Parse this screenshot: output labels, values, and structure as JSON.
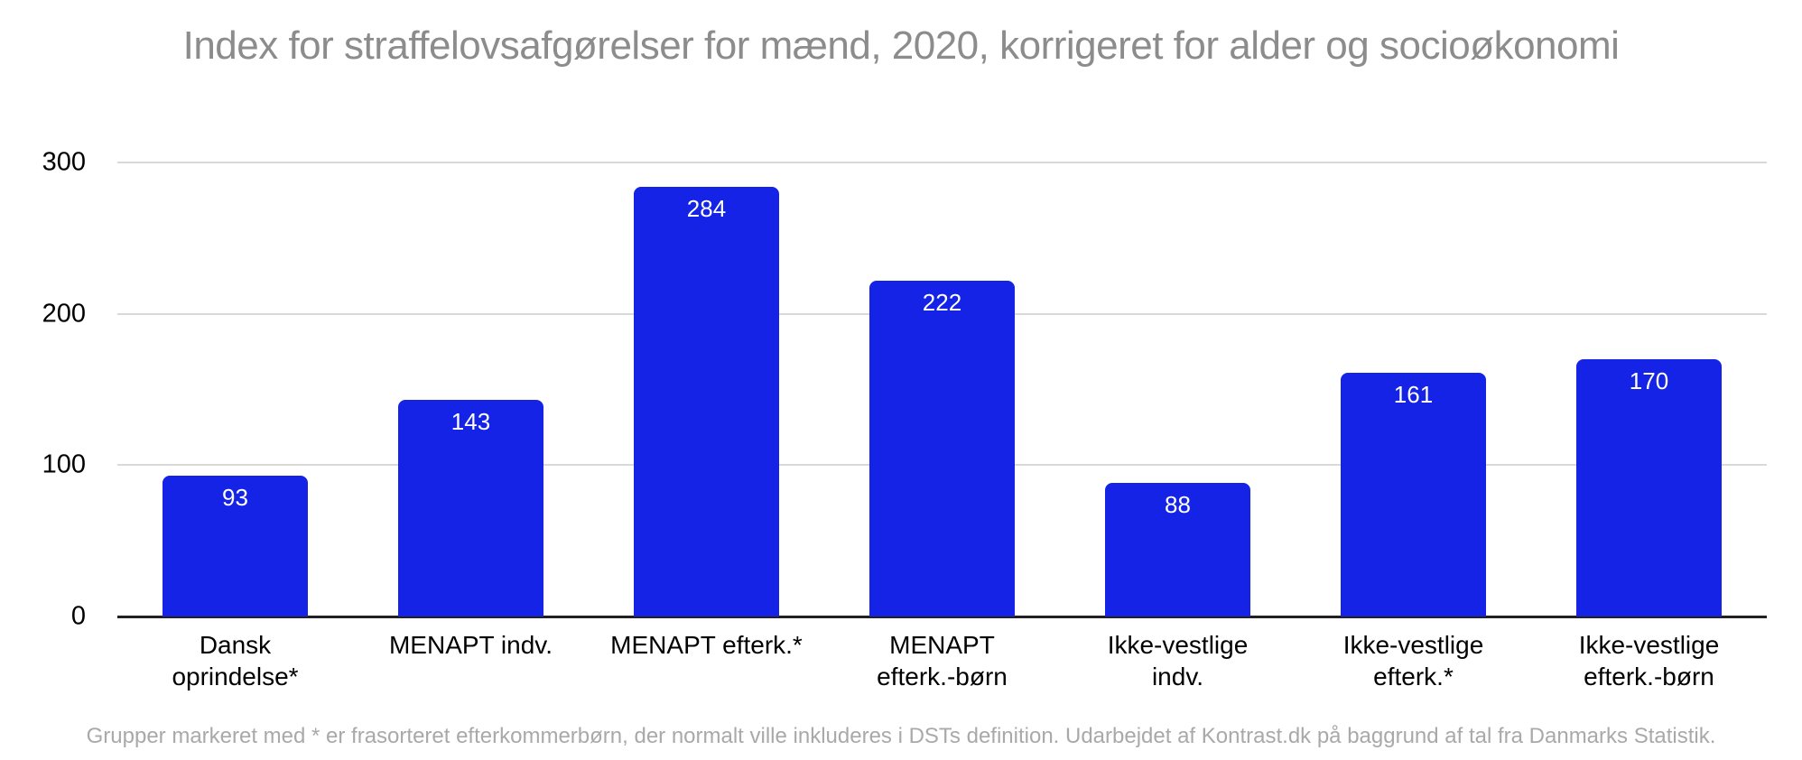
{
  "chart_data": {
    "type": "bar",
    "title": "Index for straffelovsafgørelser for mænd, 2020, korrigeret for alder og socioøkonomi",
    "categories": [
      "Dansk oprindelse*",
      "MENAPT indv.",
      "MENAPT efterk.*",
      "MENAPT efterk.-børn",
      "Ikke-vestlige indv.",
      "Ikke-vestlige efterk.*",
      "Ikke-vestlige efterk.-børn"
    ],
    "category_lines": [
      [
        "Dansk",
        "oprindelse*"
      ],
      [
        "MENAPT indv."
      ],
      [
        "MENAPT efterk.*"
      ],
      [
        "MENAPT",
        "efterk.-børn"
      ],
      [
        "Ikke-vestlige",
        "indv."
      ],
      [
        "Ikke-vestlige",
        "efterk.*"
      ],
      [
        "Ikke-vestlige",
        "efterk.-børn"
      ]
    ],
    "values": [
      93,
      143,
      284,
      222,
      88,
      161,
      170
    ],
    "xlabel": "",
    "ylabel": "",
    "y_ticks": [
      300,
      200,
      100,
      0
    ],
    "ylim": [
      0,
      300
    ],
    "grid": "horizontal",
    "legend": "none",
    "footnote": "Grupper markeret med * er frasorteret efterkommerbørn, der normalt ville inkluderes i DSTs definition. Udarbejdet af Kontrast.dk på baggrund af tal fra Danmarks Statistik."
  },
  "colors": {
    "bar": "#1423e6",
    "value_label": "#ffffff",
    "gridline": "#d9d9d9",
    "baseline": "#212121",
    "title": "#8c8c8c",
    "footnote": "#a9a9a9"
  }
}
